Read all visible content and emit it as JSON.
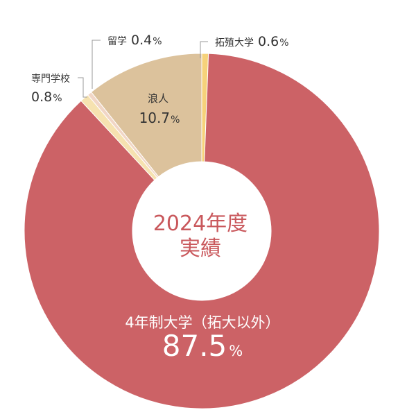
{
  "chart_data": {
    "type": "pie",
    "center_label": [
      "2024年度",
      "実績"
    ],
    "unit": "%",
    "slices": [
      {
        "name": "拓殖大学",
        "value": 0.6,
        "color": "#f6d27a"
      },
      {
        "name": "4年制大学（拓大以外）",
        "value": 87.5,
        "color": "#cc6266"
      },
      {
        "name": "専門学校",
        "value": 0.8,
        "color": "#f6e2b0"
      },
      {
        "name": "留学",
        "value": 0.4,
        "color": "#f1d6c6"
      },
      {
        "name": "浪人",
        "value": 10.7,
        "color": "#dcc29c"
      }
    ]
  }
}
